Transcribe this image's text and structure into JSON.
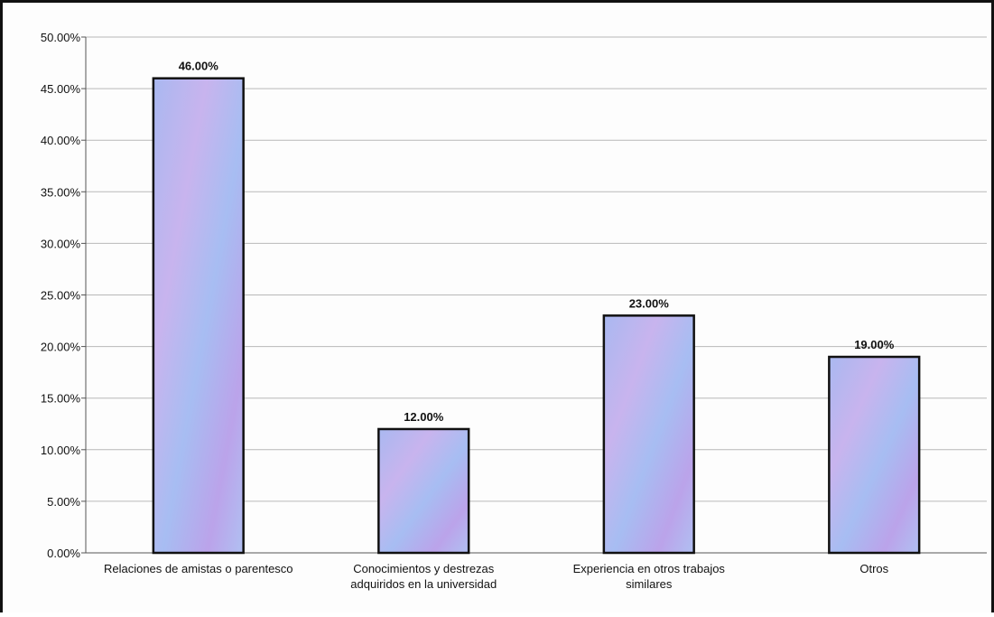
{
  "chart_data": {
    "type": "bar",
    "title": "",
    "xlabel": "",
    "ylabel": "",
    "ylim": [
      0,
      50
    ],
    "y_tick_values": [
      0,
      5,
      10,
      15,
      20,
      25,
      30,
      35,
      40,
      45,
      50
    ],
    "y_tick_labels": [
      "0.00%",
      "5.00%",
      "10.00%",
      "15.00%",
      "20.00%",
      "25.00%",
      "30.00%",
      "35.00%",
      "40.00%",
      "45.00%",
      "50.00%"
    ],
    "grid": true,
    "legend": "none",
    "categories": [
      [
        "Relaciones de amistas o parentesco"
      ],
      [
        "Conocimientos y destrezas",
        "adquiridos en la universidad"
      ],
      [
        "Experiencia en otros trabajos",
        "similares"
      ],
      [
        "Otros"
      ]
    ],
    "values": [
      46,
      12,
      23,
      19
    ],
    "data_labels": [
      "46.00%",
      "12.00%",
      "23.00%",
      "19.00%"
    ],
    "colors": {
      "bar_fill_light": "#c8b4ee",
      "bar_fill_mid": "#a9b8f0",
      "bar_fill_dark": "#b39be8",
      "bar_stroke": "#111111",
      "grid": "#b8b8b8",
      "axis": "#555555"
    }
  }
}
